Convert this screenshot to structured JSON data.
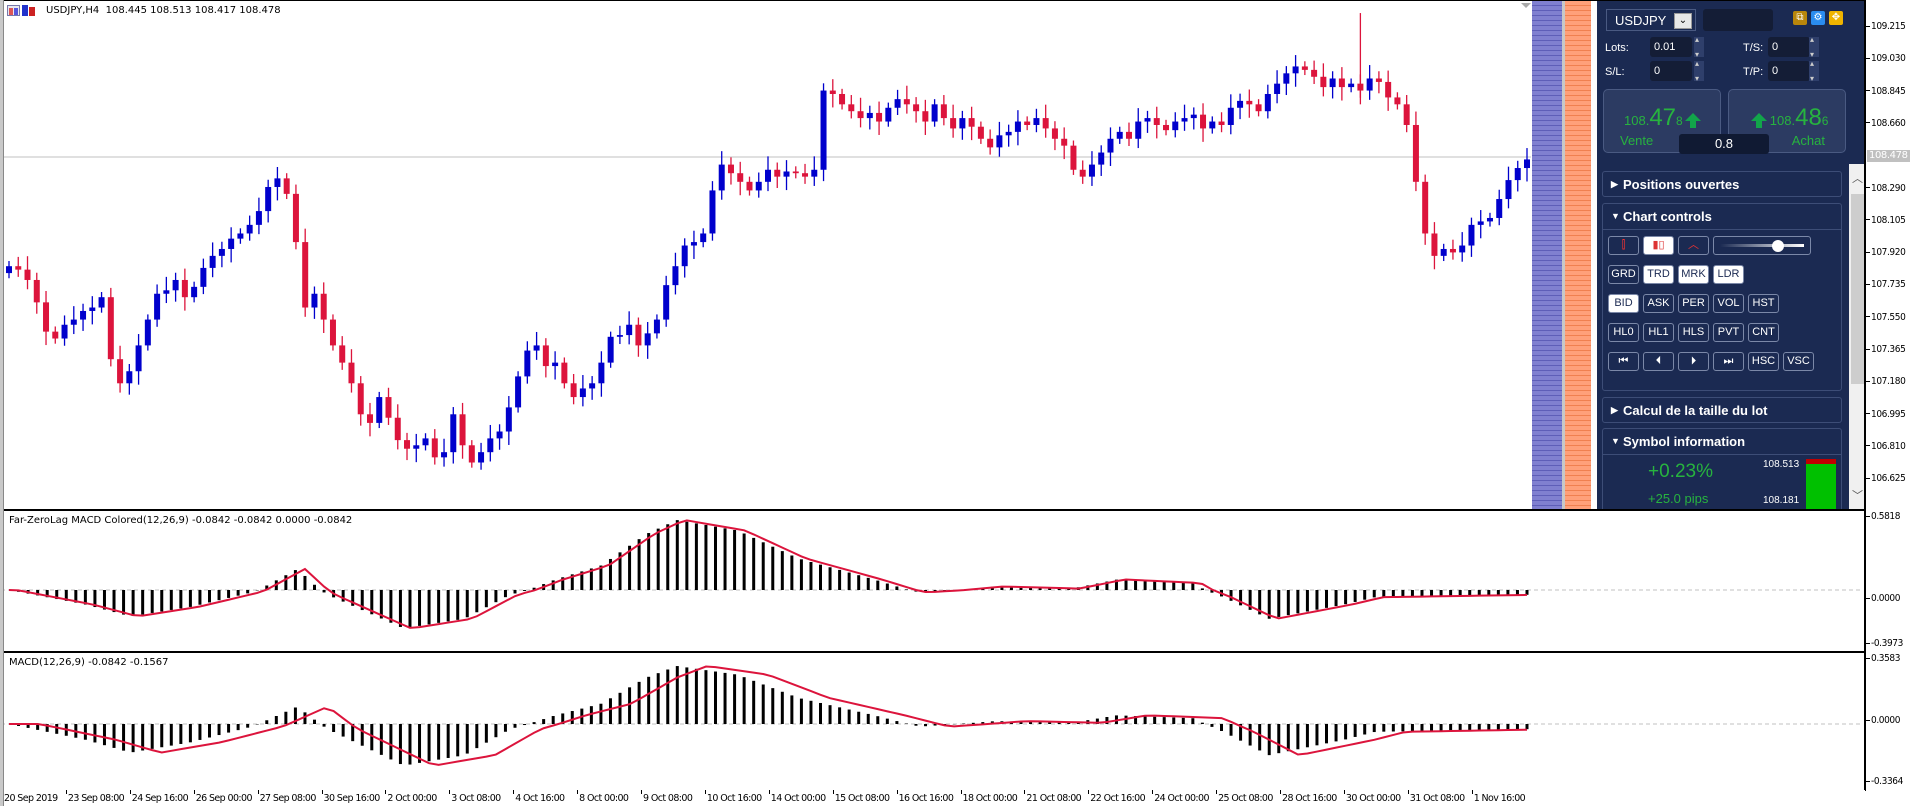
{
  "main_chart": {
    "title": "USDJPY,H4  108.445 108.513 108.417 108.478",
    "symbol": "USDJPY",
    "timeframe": "H4",
    "ohlc": {
      "open": "108.445",
      "high": "108.513",
      "low": "108.417",
      "close": "108.478"
    },
    "current_price": "108.478",
    "price_ticks": [
      "109.215",
      "109.030",
      "108.845",
      "108.660",
      "108.290",
      "108.105",
      "107.920",
      "107.735",
      "107.550",
      "107.365",
      "107.180",
      "106.995",
      "106.810",
      "106.625"
    ],
    "bull_color": "#0000cc",
    "bear_color": "#dc143c"
  },
  "indicator1": {
    "title": "Far-ZeroLag MACD Colored(12,26,9) -0.0842 -0.0842 0.0000 -0.0842",
    "ticks": [
      "0.5818",
      "0.0000",
      "-0.3973"
    ]
  },
  "indicator2": {
    "title": "MACD(12,26,9) -0.0842 -0.1567",
    "ticks": [
      "0.3583",
      "0.0000",
      "-0.3364"
    ]
  },
  "time_axis": [
    "20 Sep 2019",
    "23 Sep 08:00",
    "24 Sep 16:00",
    "26 Sep 00:00",
    "27 Sep 08:00",
    "30 Sep 16:00",
    "2 Oct 00:00",
    "3 Oct 08:00",
    "4 Oct 16:00",
    "8 Oct 00:00",
    "9 Oct 08:00",
    "10 Oct 16:00",
    "14 Oct 00:00",
    "15 Oct 08:00",
    "16 Oct 16:00",
    "18 Oct 00:00",
    "21 Oct 08:00",
    "22 Oct 16:00",
    "24 Oct 00:00",
    "25 Oct 08:00",
    "28 Oct 16:00",
    "30 Oct 00:00",
    "31 Oct 08:00",
    "1 Nov 16:00"
  ],
  "trade_panel": {
    "symbol": "USDJPY",
    "lots_label": "Lots:",
    "lots_value": "0.01",
    "ts_label": "T/S:",
    "ts_value": "0",
    "sl_label": "S/L:",
    "sl_value": "0",
    "tp_label": "T/P:",
    "tp_value": "0",
    "sell": {
      "prefix": "108.",
      "big": "47",
      "suffix": "8",
      "label": "Vente"
    },
    "buy": {
      "prefix": "108.",
      "big": "48",
      "suffix": "6",
      "label": "Achat"
    },
    "spread": "0.8",
    "sections": {
      "positions": "Positions ouvertes",
      "chart_controls": "Chart controls",
      "lot_calc": "Calcul de la taille du lot",
      "symbol_info": "Symbol information"
    },
    "buttons_row2": [
      "GRD",
      "TRD",
      "MRK",
      "LDR"
    ],
    "buttons_row3": [
      "BID",
      "ASK",
      "PER",
      "VOL",
      "HST"
    ],
    "buttons_row4": [
      "HL0",
      "HL1",
      "HLS",
      "PVT",
      "CNT"
    ],
    "buttons_row5": [
      "⏮",
      "⏴",
      "⏵",
      "⏭",
      "HSC",
      "VSC"
    ],
    "symbol_info": {
      "change_pct": "+0.23%",
      "change_pips": "+25.0 pips",
      "high": "108.513",
      "low": "108.181"
    },
    "colors": {
      "bg": "#1b2a52",
      "green": "#27b33f",
      "accent_gold": "#c8a000",
      "accent_blue": "#2a8cf0"
    }
  }
}
